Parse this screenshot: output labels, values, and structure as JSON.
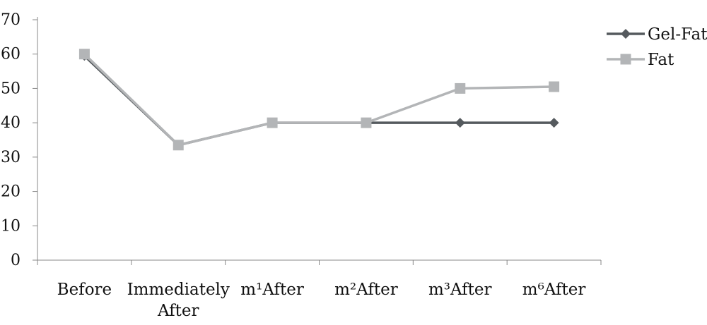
{
  "chart_data": {
    "type": "line",
    "title": "",
    "xlabel": "",
    "ylabel": "",
    "ylim": [
      0,
      70
    ],
    "yticks": [
      0,
      10,
      20,
      30,
      40,
      50,
      60,
      70
    ],
    "categories": [
      [
        "Before"
      ],
      [
        "Immediately",
        "After"
      ],
      [
        "m¹After"
      ],
      [
        "m²After"
      ],
      [
        "m³After"
      ],
      [
        "m⁶After"
      ]
    ],
    "series": [
      {
        "name": "Gel-Fat",
        "values": [
          59.5,
          33.5,
          40,
          40,
          40,
          40
        ],
        "color": "#555a5e",
        "marker": "diamond"
      },
      {
        "name": "Fat",
        "values": [
          60,
          33.5,
          40,
          40,
          50,
          50.5
        ],
        "color": "#b3b5b7",
        "marker": "square"
      }
    ],
    "grid": false,
    "legend_position": "top-right"
  }
}
